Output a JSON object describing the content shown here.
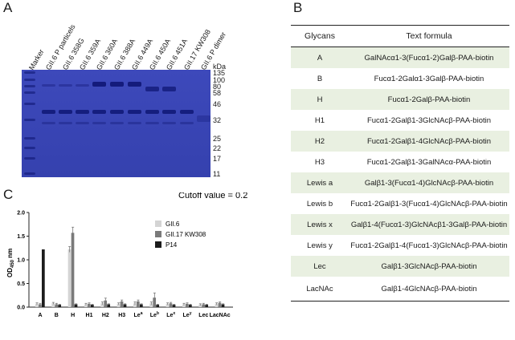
{
  "panels": {
    "a": "A",
    "b": "B",
    "c": "C"
  },
  "gel": {
    "lanes": [
      "Marker",
      "GII.6 P particels",
      "GII.6 358G",
      "GII.6 359A",
      "GII.6 360A",
      "GII.6 388A",
      "GII.6 449A",
      "GII.6 450A",
      "GII.6 451A",
      "GII.17 KW308",
      "GII.6 P dimer"
    ],
    "kda_unit": "kDa",
    "kda_markers": [
      "135",
      "100",
      "80",
      "58",
      "46",
      "32",
      "25",
      "22",
      "17",
      "11"
    ],
    "gel_color": "#3b47b8"
  },
  "table": {
    "headers": [
      "Glycans",
      "Text formula"
    ],
    "rows": [
      {
        "glycan": "A",
        "formula": "GalNAcα1-3(Fucα1-2)Galβ-PAA-biotin"
      },
      {
        "glycan": "B",
        "formula": "Fucα1-2Galα1-3Galβ-PAA-biotin"
      },
      {
        "glycan": "H",
        "formula": "Fucα1-2Galβ-PAA-biotin"
      },
      {
        "glycan": "H1",
        "formula": "Fucα1-2Galβ1-3GlcNAcβ-PAA-biotin"
      },
      {
        "glycan": "H2",
        "formula": "Fucα1-2Galβ1-4GlcNAcβ-PAA-biotin"
      },
      {
        "glycan": "H3",
        "formula": "Fucα1-2Galβ1-3GalNAcα-PAA-biotin"
      },
      {
        "glycan": "Lewis a",
        "formula": "Galβ1-3(Fucα1-4)GlcNAcβ-PAA-biotin"
      },
      {
        "glycan": "Lewis b",
        "formula": "Fucα1-2Galβ1-3(Fucα1-4)GlcNAcβ-PAA-biotin"
      },
      {
        "glycan": "Lewis x",
        "formula": "Galβ1-4(Fucα1-3)GlcNAcβ1-3Galβ-PAA-biotin"
      },
      {
        "glycan": "Lewis y",
        "formula": "Fucα1-2Galβ1-4(Fucα1-3)GlcNAcβ-PAA-biotin"
      },
      {
        "glycan": "Lec",
        "formula": "Galβ1-3GlcNAcβ-PAA-biotin"
      },
      {
        "glycan": "LacNAc",
        "formula": "Galβ1-4GlcNAcβ-PAA-biotin"
      }
    ],
    "shade_color": "#e9f0e1"
  },
  "chart_data": {
    "type": "bar",
    "title": "Cutoff  value = 0.2",
    "ylabel_main": "OD",
    "ylabel_sub": "450",
    "ylabel_unit": " nm",
    "categories": [
      "A",
      "B",
      "H",
      "H1",
      "H2",
      "H3",
      "Le",
      "Le",
      "Le",
      "Le",
      "Lec",
      "LacNAc"
    ],
    "category_superscripts": [
      "",
      "",
      "",
      "",
      "",
      "",
      "a",
      "b",
      "x",
      "y",
      "",
      ""
    ],
    "ylim": [
      0,
      2.0
    ],
    "yticks": [
      "0.0",
      "0.5",
      "1.0",
      "1.5",
      "2.0"
    ],
    "series": [
      {
        "name": "GII.6",
        "color": "#d4d4d4",
        "values": [
          0.07,
          0.08,
          1.22,
          0.06,
          0.08,
          0.07,
          0.08,
          0.08,
          0.07,
          0.06,
          0.05,
          0.07
        ],
        "errors": [
          0.02,
          0.02,
          0.06,
          0.02,
          0.03,
          0.02,
          0.03,
          0.03,
          0.02,
          0.02,
          0.02,
          0.02
        ]
      },
      {
        "name": "GII.17 KW308",
        "color": "#7a7a7a",
        "values": [
          0.06,
          0.06,
          1.57,
          0.07,
          0.14,
          0.12,
          0.12,
          0.2,
          0.08,
          0.07,
          0.06,
          0.09
        ],
        "errors": [
          0.02,
          0.02,
          0.12,
          0.02,
          0.05,
          0.03,
          0.03,
          0.1,
          0.02,
          0.02,
          0.02,
          0.02
        ]
      },
      {
        "name": "P14",
        "color": "#1c1c1c",
        "values": [
          1.22,
          0.05,
          0.06,
          0.05,
          0.06,
          0.06,
          0.06,
          0.05,
          0.05,
          0.05,
          0.05,
          0.06
        ],
        "errors": [
          0.0,
          0.01,
          0.01,
          0.01,
          0.01,
          0.01,
          0.01,
          0.01,
          0.01,
          0.01,
          0.01,
          0.01
        ]
      }
    ]
  }
}
